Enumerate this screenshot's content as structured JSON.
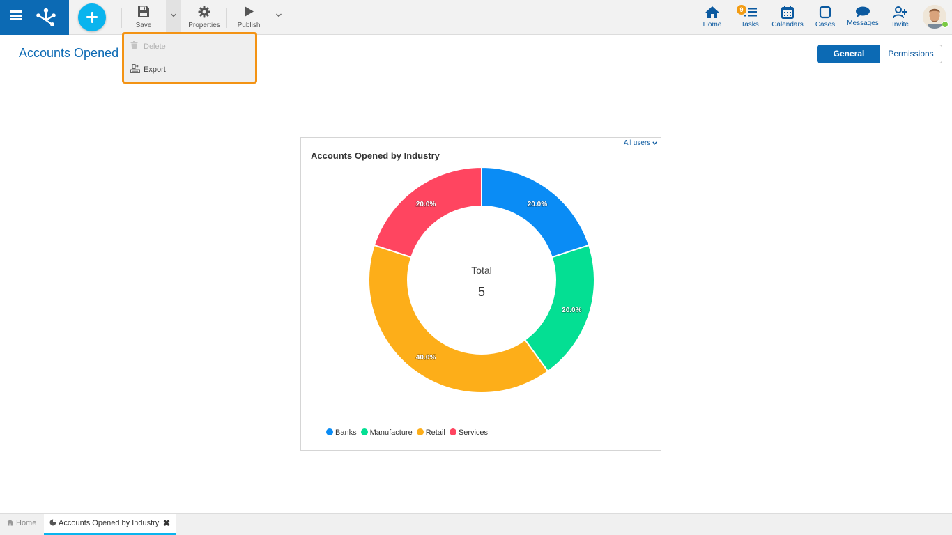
{
  "topbar": {
    "tools": {
      "save_label": "Save",
      "properties_label": "Properties",
      "publish_label": "Publish"
    },
    "right": {
      "home_label": "Home",
      "tasks_label": "Tasks",
      "tasks_badge": "9",
      "calendars_label": "Calendars",
      "cases_label": "Cases",
      "messages_label": "Messages",
      "invite_label": "Invite"
    }
  },
  "dropdown": {
    "delete_label": "Delete",
    "export_label": "Export"
  },
  "page": {
    "title": "Accounts Opened",
    "tab_general": "General",
    "tab_permissions": "Permissions"
  },
  "card": {
    "filter_label": "All users",
    "center_label": "Total",
    "center_value": "5"
  },
  "chart_data": {
    "type": "pie",
    "title": "Accounts Opened by Industry",
    "categories": [
      "Banks",
      "Manufacture",
      "Retail",
      "Services"
    ],
    "values": [
      1,
      1,
      2,
      1
    ],
    "percent_labels": [
      "20.0%",
      "20.0%",
      "40.0%",
      "20.0%"
    ],
    "colors": [
      "#0a8cf5",
      "#04df93",
      "#fdae19",
      "#ff4560"
    ],
    "donut": true,
    "legend_position": "bottom"
  },
  "bottom_tabs": {
    "home_label": "Home",
    "active_label": "Accounts Opened by Industry"
  },
  "colors": {
    "brand": "#0c6ab4",
    "accent": "#0ab4ee",
    "highlight": "#f39314"
  }
}
